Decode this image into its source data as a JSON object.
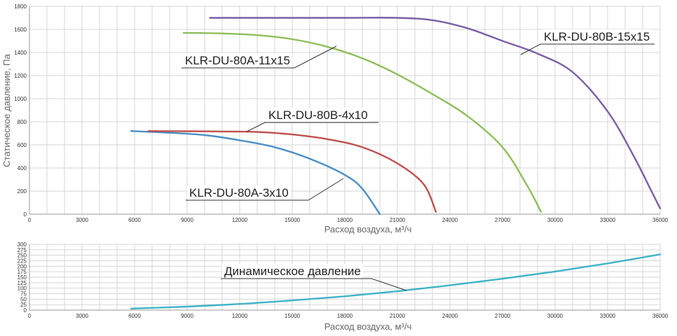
{
  "chart_data": [
    {
      "type": "line",
      "xlabel": "Расход воздуха, м³/ч",
      "ylabel": "Статическое давление, Па",
      "xlim": [
        0,
        36000
      ],
      "ylim": [
        0,
        1800
      ],
      "x_ticks": [
        0,
        3000,
        6000,
        9000,
        12000,
        15000,
        18000,
        21000,
        24000,
        27000,
        30000,
        33000,
        36000
      ],
      "y_ticks": [
        0,
        200,
        400,
        600,
        800,
        1000,
        1200,
        1400,
        1600,
        1800
      ],
      "grid": true,
      "series": [
        {
          "name": "KLR-DU-80A-3x10",
          "color": "#4a90c8",
          "points": [
            [
              5800,
              720
            ],
            [
              8000,
              705
            ],
            [
              10000,
              685
            ],
            [
              12000,
              640
            ],
            [
              14000,
              580
            ],
            [
              16000,
              480
            ],
            [
              18000,
              340
            ],
            [
              19000,
              220
            ],
            [
              20000,
              0
            ]
          ]
        },
        {
          "name": "KLR-DU-80B-4x10",
          "color": "#c0504d",
          "points": [
            [
              6800,
              720
            ],
            [
              9000,
              718
            ],
            [
              11000,
              716
            ],
            [
              13000,
              712
            ],
            [
              15000,
              690
            ],
            [
              17000,
              650
            ],
            [
              19000,
              580
            ],
            [
              21000,
              440
            ],
            [
              22500,
              260
            ],
            [
              23200,
              20
            ]
          ]
        },
        {
          "name": "KLR-DU-80A-11x15",
          "color": "#8dbf5a",
          "points": [
            [
              8800,
              1570
            ],
            [
              11000,
              1565
            ],
            [
              13000,
              1550
            ],
            [
              15000,
              1515
            ],
            [
              17000,
              1450
            ],
            [
              19000,
              1350
            ],
            [
              21000,
              1210
            ],
            [
              23000,
              1040
            ],
            [
              25000,
              850
            ],
            [
              27000,
              580
            ],
            [
              28400,
              250
            ],
            [
              29200,
              20
            ]
          ]
        },
        {
          "name": "KLR-DU-80B-15x15",
          "color": "#7b5ea7",
          "points": [
            [
              10300,
              1700
            ],
            [
              14000,
              1700
            ],
            [
              18000,
              1700
            ],
            [
              21000,
              1700
            ],
            [
              23000,
              1680
            ],
            [
              25000,
              1610
            ],
            [
              27000,
              1500
            ],
            [
              29000,
              1390
            ],
            [
              31000,
              1230
            ],
            [
              33000,
              890
            ],
            [
              34500,
              500
            ],
            [
              35500,
              200
            ],
            [
              36000,
              50
            ]
          ]
        }
      ]
    },
    {
      "type": "line",
      "xlabel": "Расход воздуха, м³/ч",
      "xlim": [
        0,
        36000
      ],
      "ylim": [
        0,
        300
      ],
      "x_ticks": [
        0,
        3000,
        6000,
        9000,
        12000,
        15000,
        18000,
        21000,
        24000,
        27000,
        30000,
        33000,
        36000
      ],
      "y_ticks": [
        0,
        25,
        50,
        75,
        100,
        125,
        150,
        175,
        200,
        225,
        250,
        275,
        300
      ],
      "grid": true,
      "series": [
        {
          "name": "Динамическое давление",
          "color": "#3fb3c9",
          "points": [
            [
              5800,
              7
            ],
            [
              9000,
              16
            ],
            [
              12000,
              28
            ],
            [
              15000,
              44
            ],
            [
              18000,
              63
            ],
            [
              21000,
              86
            ],
            [
              24000,
              113
            ],
            [
              27000,
              143
            ],
            [
              30000,
              176
            ],
            [
              33000,
              213
            ],
            [
              36000,
              254
            ]
          ]
        }
      ]
    }
  ]
}
